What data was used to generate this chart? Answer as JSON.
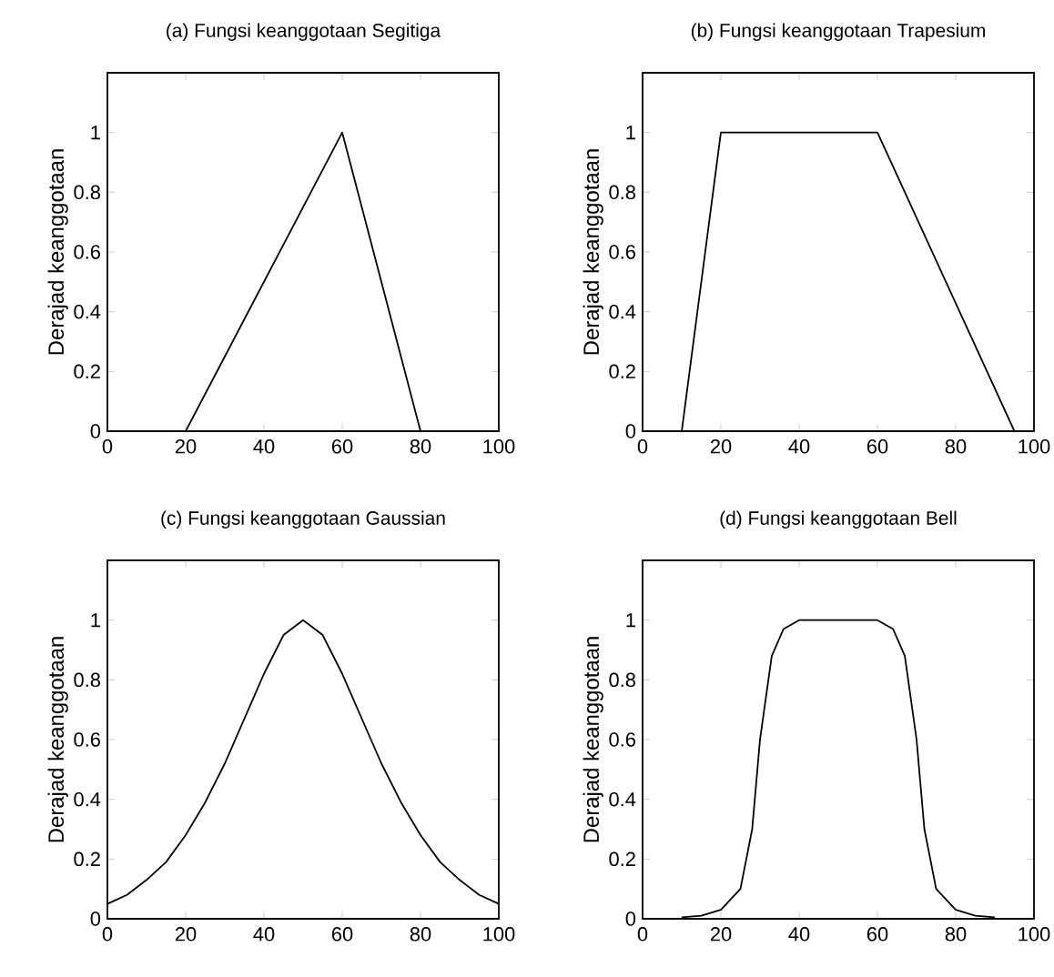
{
  "chart_data": [
    {
      "type": "line",
      "title": "(a) Fungsi keanggotaan Segitiga",
      "ylabel": "Derajad keanggotaan",
      "x": [
        0,
        20,
        60,
        80,
        100
      ],
      "values": [
        0,
        0,
        1,
        0,
        0
      ],
      "color": "#000000",
      "xlim": [
        0,
        100
      ],
      "ylim": [
        0,
        1.2
      ],
      "xticks": [
        0,
        20,
        40,
        60,
        80,
        100
      ],
      "yticks": [
        0,
        0.2,
        0.4,
        0.6,
        0.8,
        1
      ]
    },
    {
      "type": "line",
      "title": "(b) Fungsi keanggotaan Trapesium",
      "ylabel": "Derajad keanggotaan",
      "x": [
        0,
        10,
        20,
        60,
        95,
        100
      ],
      "values": [
        0,
        0,
        1,
        1,
        0,
        0
      ],
      "color": "#000000",
      "xlim": [
        0,
        100
      ],
      "ylim": [
        0,
        1.2
      ],
      "xticks": [
        0,
        20,
        40,
        60,
        80,
        100
      ],
      "yticks": [
        0,
        0.2,
        0.4,
        0.6,
        0.8,
        1
      ]
    },
    {
      "type": "line",
      "title": "(c) Fungsi keanggotaan Gaussian",
      "ylabel": "Derajad keanggotaan",
      "x": [
        0,
        5,
        10,
        15,
        20,
        25,
        30,
        35,
        40,
        45,
        50,
        55,
        60,
        65,
        70,
        75,
        80,
        85,
        90,
        95,
        100
      ],
      "values": [
        0.05,
        0.08,
        0.13,
        0.19,
        0.28,
        0.39,
        0.52,
        0.67,
        0.82,
        0.95,
        1,
        0.95,
        0.82,
        0.67,
        0.52,
        0.39,
        0.28,
        0.19,
        0.13,
        0.08,
        0.05
      ],
      "color": "#000000",
      "xlim": [
        0,
        100
      ],
      "ylim": [
        0,
        1.2
      ],
      "xticks": [
        0,
        20,
        40,
        60,
        80,
        100
      ],
      "yticks": [
        0,
        0.2,
        0.4,
        0.6,
        0.8,
        1
      ]
    },
    {
      "type": "line",
      "title": "(d) Fungsi keanggotaan Bell",
      "ylabel": "Derajad keanggotaan",
      "x": [
        10,
        15,
        20,
        25,
        28,
        30,
        33,
        36,
        40,
        60,
        64,
        67,
        70,
        72,
        75,
        80,
        85,
        90
      ],
      "values": [
        0.005,
        0.01,
        0.03,
        0.1,
        0.3,
        0.6,
        0.88,
        0.97,
        1,
        1,
        0.97,
        0.88,
        0.6,
        0.3,
        0.1,
        0.03,
        0.01,
        0.005
      ],
      "color": "#000000",
      "xlim": [
        0,
        100
      ],
      "ylim": [
        0,
        1.2
      ],
      "xticks": [
        0,
        20,
        40,
        60,
        80,
        100
      ],
      "yticks": [
        0,
        0.2,
        0.4,
        0.6,
        0.8,
        1
      ]
    }
  ]
}
